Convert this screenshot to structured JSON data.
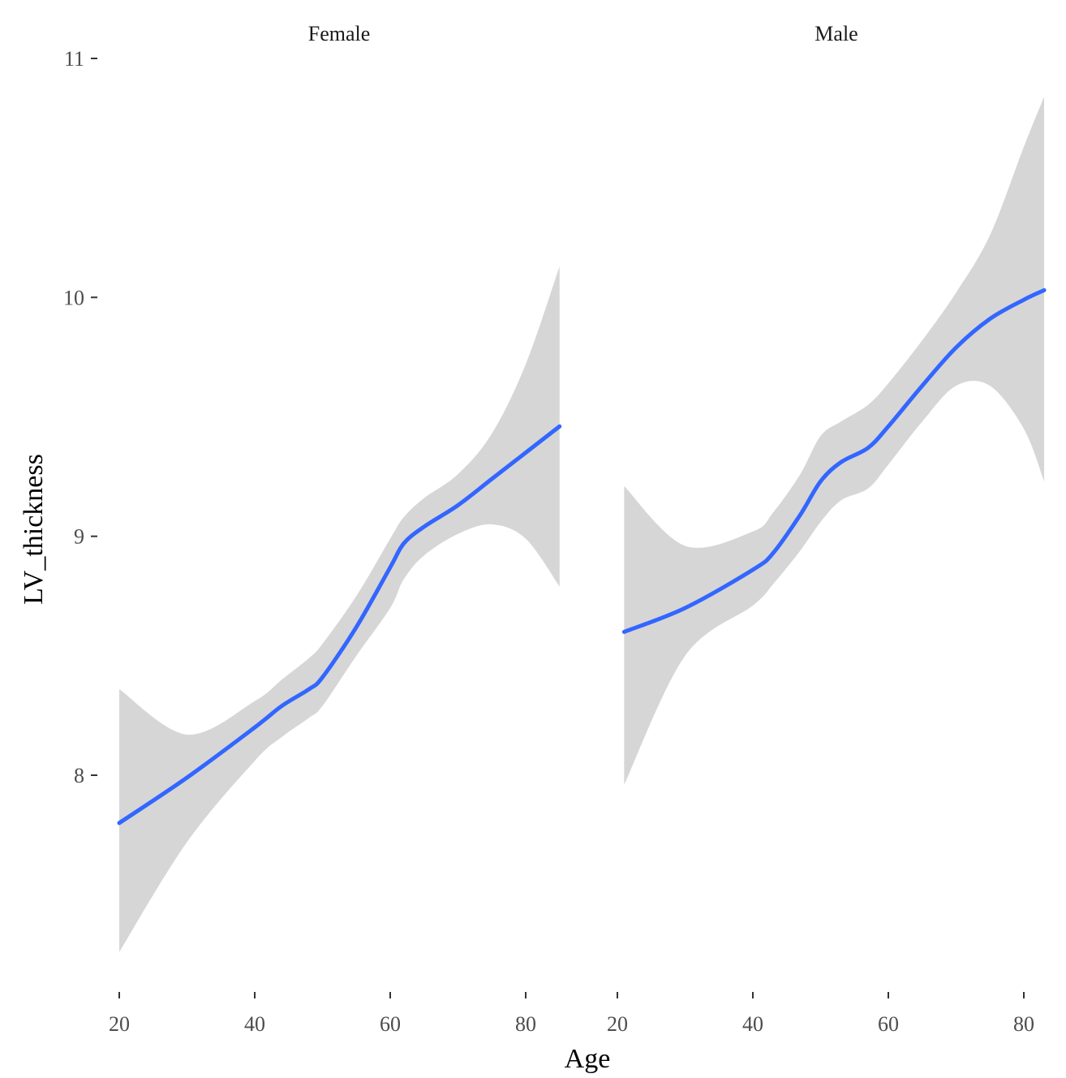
{
  "chart_data": {
    "type": "line",
    "xlabel": "Age",
    "ylabel": "LV_thickness",
    "y_ticks": [
      8,
      9,
      10,
      11
    ],
    "ylim": [
      7.2,
      11.1
    ],
    "grid": false,
    "colors": {
      "line": "#3366ff",
      "ribbon": "#d6d6d6"
    },
    "panels": [
      {
        "name": "Female",
        "x_ticks": [
          20,
          40,
          60,
          80
        ],
        "xlim": [
          20,
          85
        ],
        "x": [
          20,
          30,
          40,
          44,
          48,
          50,
          55,
          60,
          62,
          65,
          70,
          75,
          80,
          85
        ],
        "y": [
          7.8,
          7.99,
          8.2,
          8.29,
          8.36,
          8.41,
          8.62,
          8.87,
          8.97,
          9.04,
          9.13,
          9.24,
          9.35,
          9.46
        ],
        "lower": [
          7.26,
          7.72,
          8.06,
          8.16,
          8.24,
          8.29,
          8.5,
          8.7,
          8.82,
          8.92,
          9.01,
          9.05,
          8.99,
          8.79
        ],
        "upper": [
          8.36,
          8.17,
          8.31,
          8.4,
          8.49,
          8.55,
          8.75,
          8.99,
          9.08,
          9.16,
          9.26,
          9.43,
          9.72,
          10.13
        ]
      },
      {
        "name": "Male",
        "x_ticks": [
          20,
          40,
          60,
          80
        ],
        "xlim": [
          21,
          83
        ],
        "x": [
          21,
          30,
          40,
          43,
          47,
          50,
          53,
          57,
          60,
          65,
          70,
          75,
          80,
          83
        ],
        "y": [
          8.6,
          8.7,
          8.86,
          8.93,
          9.09,
          9.23,
          9.31,
          9.37,
          9.46,
          9.63,
          9.79,
          9.91,
          9.99,
          10.03
        ],
        "lower": [
          7.96,
          8.5,
          8.71,
          8.8,
          8.94,
          9.06,
          9.15,
          9.2,
          9.3,
          9.48,
          9.63,
          9.63,
          9.45,
          9.23
        ],
        "upper": [
          9.21,
          8.96,
          9.02,
          9.1,
          9.26,
          9.42,
          9.48,
          9.55,
          9.64,
          9.82,
          10.02,
          10.26,
          10.63,
          10.84
        ]
      }
    ]
  }
}
